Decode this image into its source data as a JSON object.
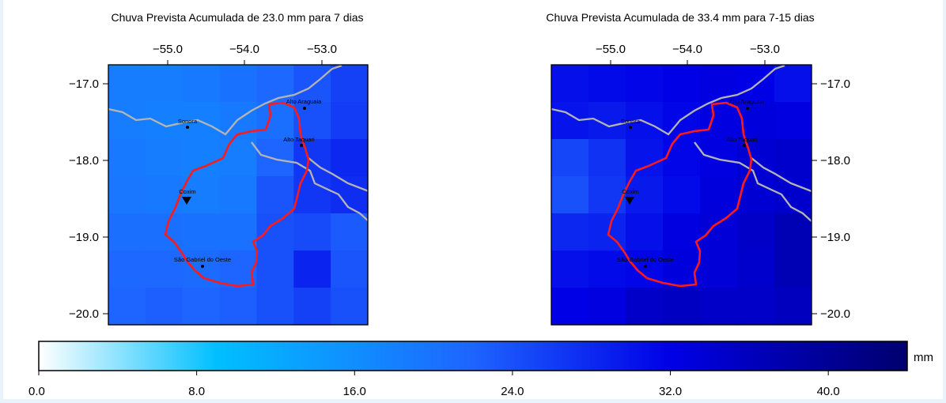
{
  "maps": [
    {
      "title": "Chuva Prevista Acumulada de 23.0 mm para 7 dias",
      "lon_ticks": [
        "−55.0",
        "−54.0",
        "−53.0"
      ],
      "lat_ticks": [
        "−17.0",
        "−18.0",
        "−19.0",
        "−20.0"
      ],
      "lat_axis_side": "left",
      "cities": {
        "alto_araguaia": "Alto Araguaia",
        "sonora": "Sonora",
        "alto_taquari": "Alto Taquari",
        "coxim": "Coxim",
        "sao_gabriel": "São Gabriel do Oeste"
      },
      "grid_mm": [
        [
          18.5,
          18.5,
          19.0,
          20.0,
          21.5,
          23.5,
          25.5
        ],
        [
          18.5,
          18.0,
          18.0,
          19.0,
          20.5,
          24.0,
          26.0
        ],
        [
          19.0,
          18.5,
          18.0,
          18.5,
          22.0,
          26.5,
          28.0
        ],
        [
          19.5,
          19.0,
          18.5,
          19.0,
          23.5,
          26.5,
          27.5
        ],
        [
          20.5,
          20.5,
          20.0,
          20.0,
          24.0,
          24.5,
          23.0
        ],
        [
          21.5,
          21.5,
          21.0,
          22.0,
          24.0,
          28.5,
          23.5
        ],
        [
          22.0,
          22.5,
          22.0,
          22.5,
          24.0,
          25.5,
          24.0
        ]
      ]
    },
    {
      "title": "Chuva Prevista Acumulada de 33.4 mm para 7-15 dias",
      "lon_ticks": [
        "−55.0",
        "−54.0",
        "−53.0"
      ],
      "lat_ticks": [
        "−17.0",
        "−18.0",
        "−19.0",
        "−20.0"
      ],
      "lat_axis_side": "right",
      "cities": {
        "alto_araguaia": "Alto Araguaia",
        "sonora": "Sonora",
        "alto_taquari": "Alto Taquari",
        "coxim": "Coxim",
        "sao_gabriel": "São Gabriel do Oeste"
      },
      "grid_mm": [
        [
          30.5,
          31.0,
          31.5,
          32.0,
          32.5,
          32.0,
          30.5
        ],
        [
          30.0,
          29.5,
          30.5,
          31.5,
          32.5,
          33.0,
          32.5
        ],
        [
          25.0,
          27.0,
          30.0,
          31.5,
          32.5,
          34.0,
          34.5
        ],
        [
          24.0,
          26.5,
          29.5,
          31.0,
          33.0,
          34.0,
          34.5
        ],
        [
          28.0,
          28.5,
          30.5,
          32.5,
          33.5,
          35.0,
          37.0
        ],
        [
          30.5,
          31.0,
          31.5,
          33.0,
          33.5,
          34.5,
          37.0
        ],
        [
          32.0,
          32.5,
          35.0,
          35.5,
          35.0,
          35.0,
          36.0
        ]
      ]
    }
  ],
  "colorbar": {
    "unit": "mm",
    "range": [
      0,
      44
    ],
    "ticks": [
      "0.0",
      "8.0",
      "16.0",
      "24.0",
      "32.0",
      "40.0"
    ],
    "tick_values": [
      0,
      8,
      16,
      24,
      32,
      40
    ],
    "stops": [
      {
        "v": 0,
        "color": "#ffffff"
      },
      {
        "v": 9,
        "color": "#00bfff"
      },
      {
        "v": 22,
        "color": "#1e64ff"
      },
      {
        "v": 32,
        "color": "#0000e6"
      },
      {
        "v": 44,
        "color": "#00006e"
      }
    ]
  },
  "colors": {
    "basin_outline": "#ff1a1a",
    "rivers": "#b4b4b4",
    "background": "#e9f3fb"
  }
}
